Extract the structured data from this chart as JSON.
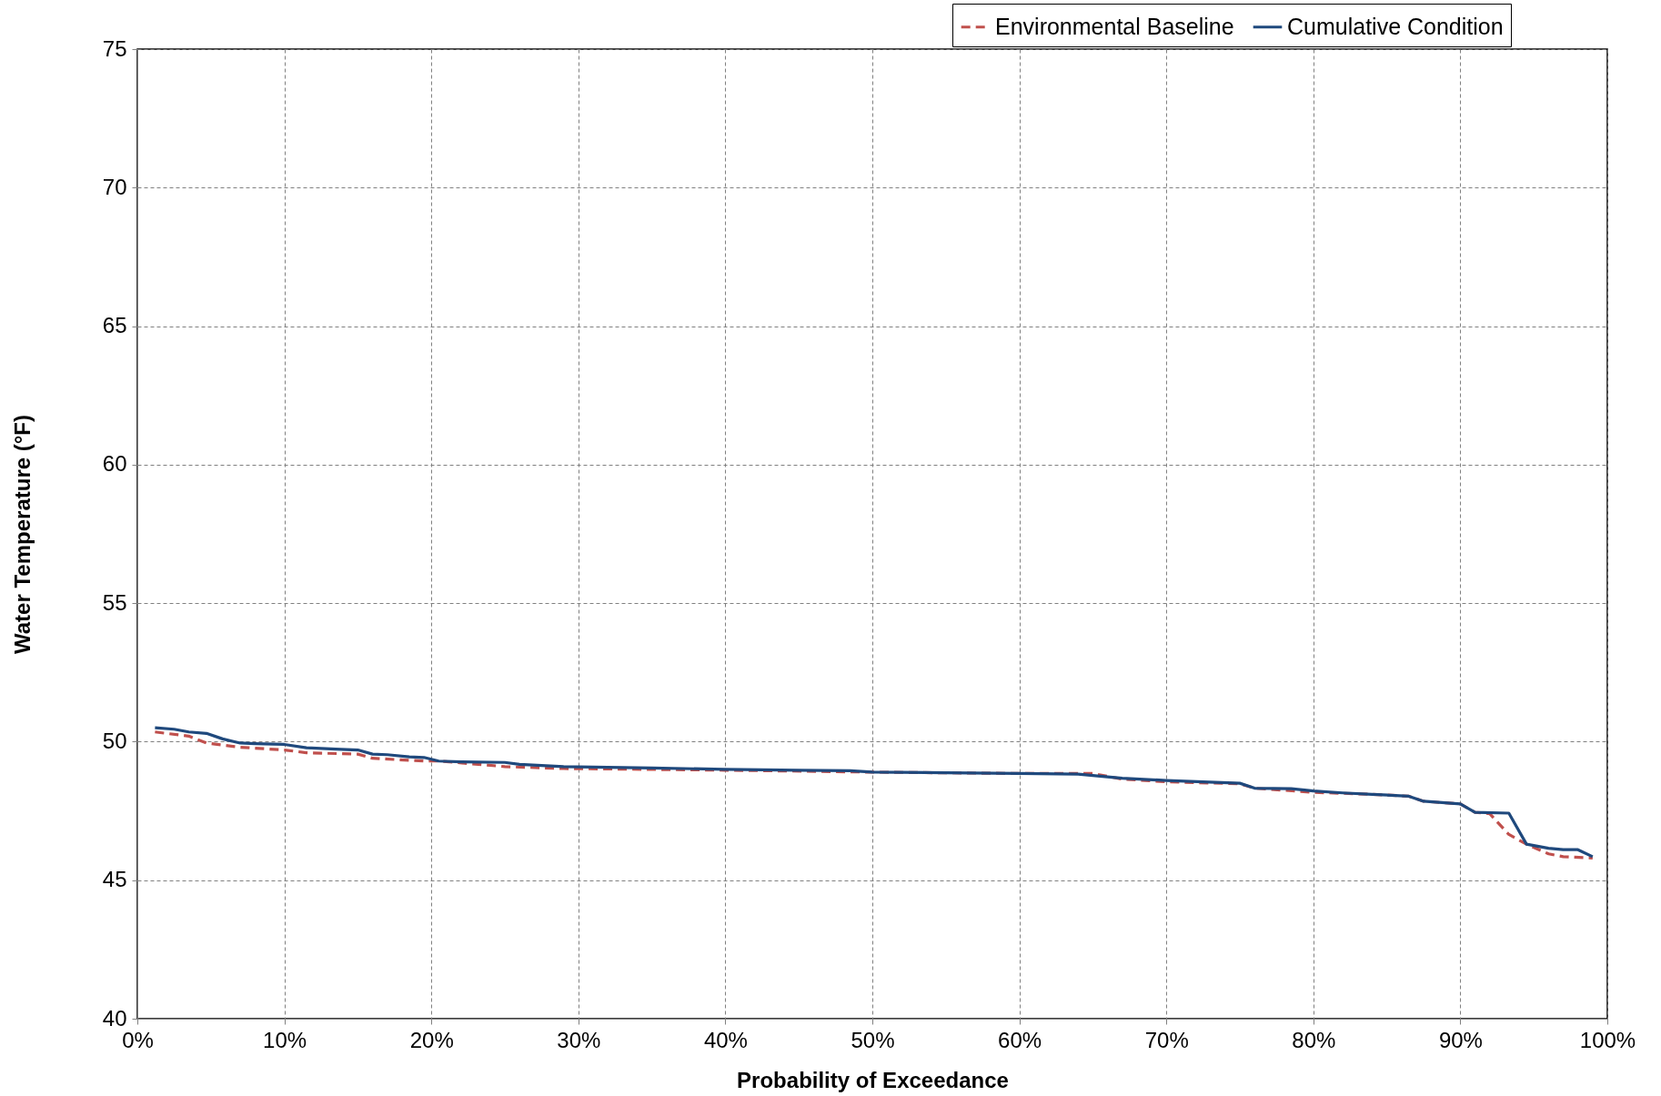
{
  "chart_data": {
    "type": "line",
    "xlabel": "Probability of Exceedance",
    "ylabel": "Water Temperature (°F)",
    "xlim": [
      0,
      100
    ],
    "xticks": [
      {
        "value": 0,
        "label": "0%"
      },
      {
        "value": 10,
        "label": "10%"
      },
      {
        "value": 20,
        "label": "20%"
      },
      {
        "value": 30,
        "label": "30%"
      },
      {
        "value": 40,
        "label": "40%"
      },
      {
        "value": 50,
        "label": "50%"
      },
      {
        "value": 60,
        "label": "60%"
      },
      {
        "value": 70,
        "label": "70%"
      },
      {
        "value": 80,
        "label": "80%"
      },
      {
        "value": 90,
        "label": "90%"
      },
      {
        "value": 100,
        "label": "100%"
      }
    ],
    "ylim": [
      40,
      75
    ],
    "yticks": [
      40,
      45,
      50,
      55,
      60,
      65,
      70,
      75
    ],
    "grid": true,
    "legend": "top right",
    "marker": "none",
    "series": [
      {
        "name": "Environmental Baseline",
        "color": "#c0504d",
        "line_style": "dashed",
        "x": [
          1.2,
          3.5,
          4.7,
          7,
          10,
          11.5,
          15,
          16,
          19.5,
          20.5,
          25,
          29,
          40,
          50,
          60,
          65,
          67,
          70,
          75,
          76,
          80,
          84,
          86.5,
          87.5,
          90,
          91,
          92,
          93.3,
          94.5,
          96,
          97,
          99
        ],
        "values": [
          50.35,
          50.2,
          49.95,
          49.8,
          49.7,
          49.6,
          49.55,
          49.4,
          49.3,
          49.3,
          49.1,
          49.03,
          48.97,
          48.9,
          48.85,
          48.85,
          48.65,
          48.55,
          48.48,
          48.32,
          48.17,
          48.1,
          48.03,
          47.85,
          47.75,
          47.45,
          47.4,
          46.65,
          46.3,
          45.95,
          45.85,
          45.8
        ]
      },
      {
        "name": "Cumulative Condition",
        "color": "#1f497d",
        "line_style": "solid",
        "x": [
          1.2,
          2.5,
          3.5,
          4.7,
          5.8,
          7,
          8,
          10,
          11.5,
          13.5,
          15,
          16,
          17,
          18.5,
          19.5,
          20.5,
          22,
          25,
          26,
          29,
          35,
          40,
          45,
          48.5,
          50,
          55,
          60,
          64,
          67,
          70,
          75,
          76,
          78.5,
          80,
          82,
          84,
          86.5,
          87.5,
          90,
          91,
          93.3,
          94.5,
          96,
          97,
          98,
          99
        ],
        "values": [
          50.5,
          50.45,
          50.35,
          50.3,
          50.1,
          49.95,
          49.93,
          49.9,
          49.78,
          49.73,
          49.7,
          49.55,
          49.53,
          49.45,
          49.43,
          49.3,
          49.27,
          49.25,
          49.18,
          49.1,
          49.05,
          49.0,
          48.97,
          48.95,
          48.9,
          48.88,
          48.85,
          48.83,
          48.68,
          48.6,
          48.5,
          48.32,
          48.3,
          48.22,
          48.15,
          48.1,
          48.03,
          47.85,
          47.75,
          47.45,
          47.42,
          46.3,
          46.15,
          46.1,
          46.1,
          45.85
        ]
      }
    ]
  }
}
